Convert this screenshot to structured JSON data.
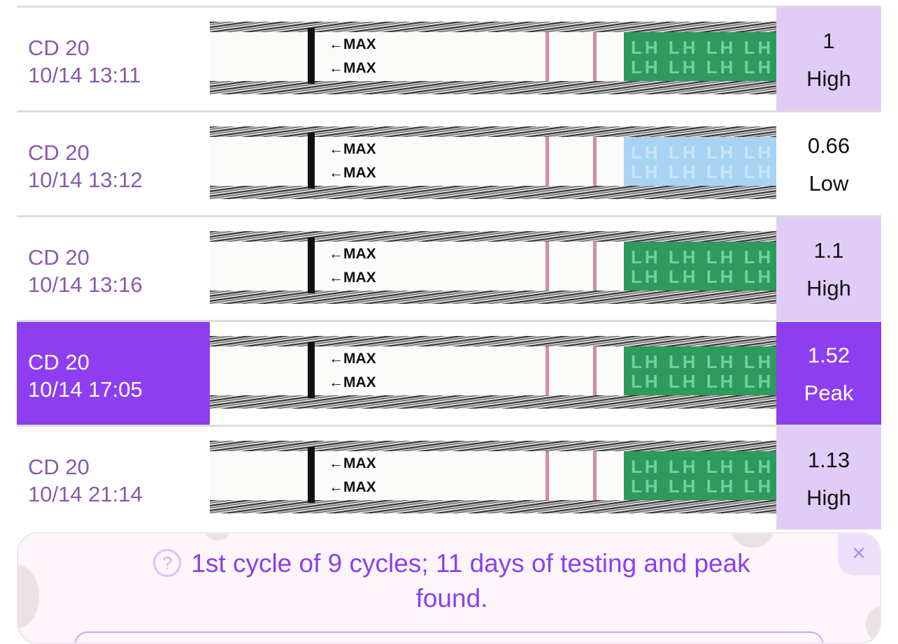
{
  "rows": [
    {
      "day": "CD 20",
      "time": "10/14 13:11",
      "value": "1",
      "level": "High",
      "highlight": true,
      "tip": "green"
    },
    {
      "day": "CD 20",
      "time": "10/14 13:12",
      "value": "0.66",
      "level": "Low",
      "highlight": false,
      "tip": "blue"
    },
    {
      "day": "CD 20",
      "time": "10/14 13:16",
      "value": "1.1",
      "level": "High",
      "highlight": true,
      "tip": "green"
    },
    {
      "day": "CD 20",
      "time": "10/14 17:05",
      "value": "1.52",
      "level": "Peak",
      "highlight": true,
      "selected": true,
      "tip": "green"
    },
    {
      "day": "CD 20",
      "time": "10/14 21:14",
      "value": "1.13",
      "level": "High",
      "highlight": true,
      "tip": "green"
    }
  ],
  "strip": {
    "max_label": "←MAX",
    "tip_text": "LH LH LH LH"
  },
  "banner": {
    "icon": "question-circle-icon",
    "message": "1st cycle of 9 cycles; 11 days of testing and peak found.",
    "close": "×"
  },
  "colors": {
    "accent": "#8d3ef0",
    "highlight": "#e1ccf8",
    "label": "#8a5aa8"
  }
}
